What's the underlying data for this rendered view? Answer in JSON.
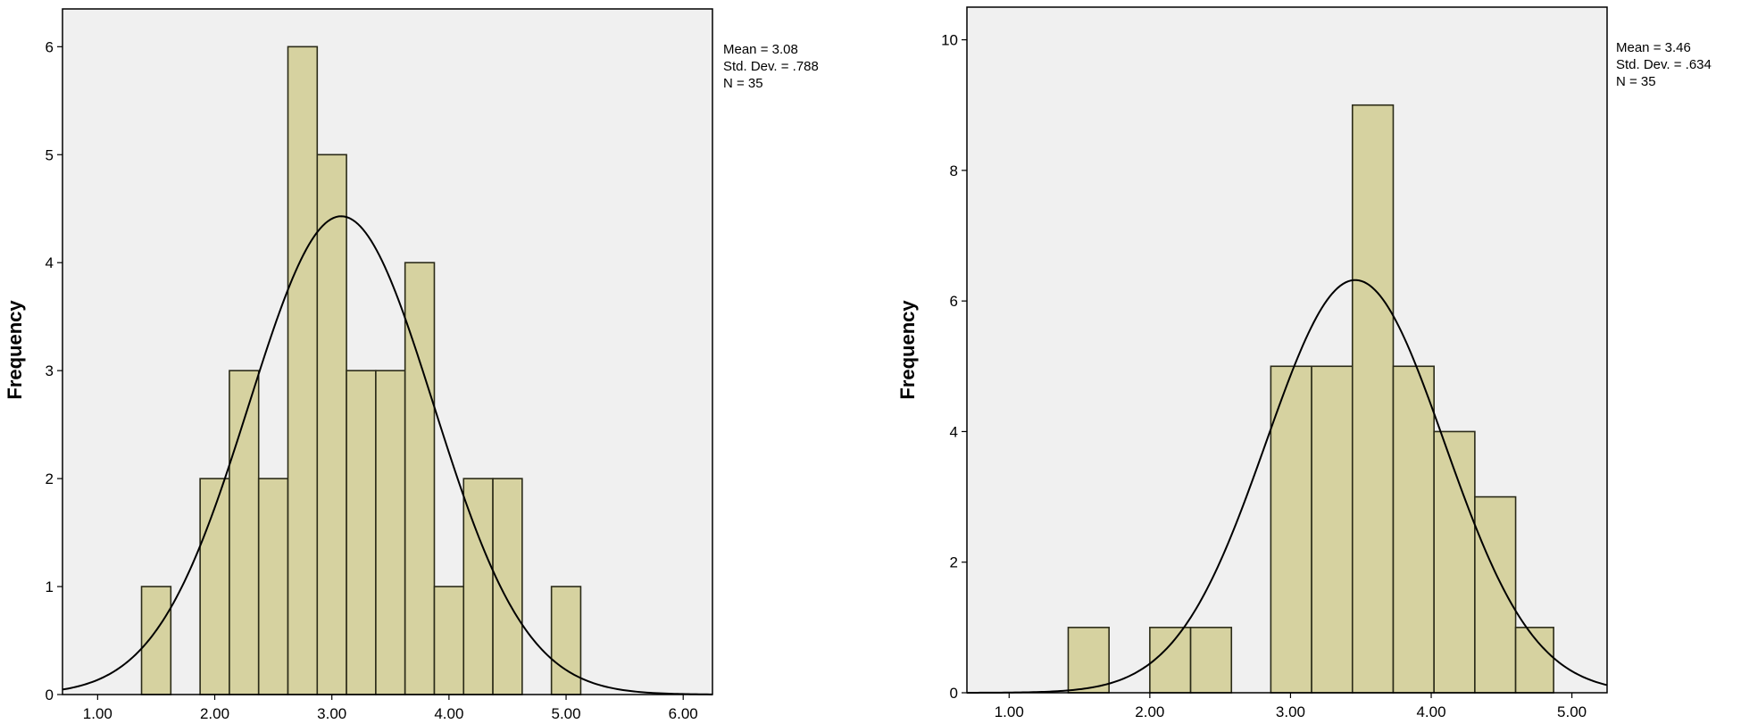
{
  "chart_data": [
    {
      "type": "bar",
      "subtype": "histogram",
      "xlabel": "",
      "ylabel": "Frequency",
      "xlim": [
        0.7,
        6.25
      ],
      "ylim": [
        0,
        6.35
      ],
      "xticks": [
        1,
        2,
        3,
        4,
        5,
        6
      ],
      "xtick_labels": [
        "1.00",
        "2.00",
        "3.00",
        "4.00",
        "5.00",
        "6.00"
      ],
      "yticks": [
        0,
        1,
        2,
        3,
        4,
        5,
        6
      ],
      "ytick_labels": [
        "0",
        "1",
        "2",
        "3",
        "4",
        "5",
        "6"
      ],
      "bins": [
        {
          "start": 1.375,
          "end": 1.625,
          "count": 1
        },
        {
          "start": 1.875,
          "end": 2.125,
          "count": 2
        },
        {
          "start": 2.125,
          "end": 2.375,
          "count": 3
        },
        {
          "start": 2.375,
          "end": 2.625,
          "count": 2
        },
        {
          "start": 2.625,
          "end": 2.875,
          "count": 6
        },
        {
          "start": 2.875,
          "end": 3.125,
          "count": 5
        },
        {
          "start": 3.125,
          "end": 3.375,
          "count": 3
        },
        {
          "start": 3.375,
          "end": 3.625,
          "count": 3
        },
        {
          "start": 3.625,
          "end": 3.875,
          "count": 4
        },
        {
          "start": 3.875,
          "end": 4.125,
          "count": 1
        },
        {
          "start": 4.125,
          "end": 4.375,
          "count": 2
        },
        {
          "start": 4.375,
          "end": 4.625,
          "count": 2
        },
        {
          "start": 4.875,
          "end": 5.125,
          "count": 1
        }
      ],
      "normal_curve": {
        "mean": 3.08,
        "sd": 0.788,
        "n": 35,
        "bin_width": 0.25
      },
      "stats": [
        "Mean = 3.08",
        "Std. Dev. = .788",
        "N = 35"
      ],
      "grid": false,
      "colors": {
        "bar_fill": "#d6d2a0",
        "bar_stroke": "#2b2b18",
        "plot_bg": "#f0f0f0",
        "curve": "#000000"
      }
    },
    {
      "type": "bar",
      "subtype": "histogram",
      "xlabel": "",
      "ylabel": "Frequency",
      "xlim": [
        0.7,
        5.25
      ],
      "ylim": [
        0,
        10.5
      ],
      "xticks": [
        1,
        2,
        3,
        4,
        5
      ],
      "xtick_labels": [
        "1.00",
        "2.00",
        "3.00",
        "4.00",
        "5.00"
      ],
      "yticks": [
        0,
        2,
        4,
        6,
        8,
        10
      ],
      "ytick_labels": [
        "0",
        "2",
        "4",
        "6",
        "8",
        "10"
      ],
      "bins": [
        {
          "start": 1.42,
          "end": 1.71,
          "count": 1
        },
        {
          "start": 2.0,
          "end": 2.29,
          "count": 1
        },
        {
          "start": 2.29,
          "end": 2.58,
          "count": 1
        },
        {
          "start": 2.86,
          "end": 3.15,
          "count": 5
        },
        {
          "start": 3.15,
          "end": 3.44,
          "count": 5
        },
        {
          "start": 3.44,
          "end": 3.73,
          "count": 9
        },
        {
          "start": 3.73,
          "end": 4.02,
          "count": 5
        },
        {
          "start": 4.02,
          "end": 4.31,
          "count": 4
        },
        {
          "start": 4.31,
          "end": 4.6,
          "count": 3
        },
        {
          "start": 4.6,
          "end": 4.87,
          "count": 1
        }
      ],
      "normal_curve": {
        "mean": 3.46,
        "sd": 0.634,
        "n": 35,
        "bin_width": 0.287
      },
      "stats": [
        "Mean = 3.46",
        "Std. Dev. = .634",
        "N = 35"
      ],
      "grid": false,
      "colors": {
        "bar_fill": "#d6d2a0",
        "bar_stroke": "#2b2b18",
        "plot_bg": "#f0f0f0",
        "curve": "#000000"
      }
    }
  ]
}
